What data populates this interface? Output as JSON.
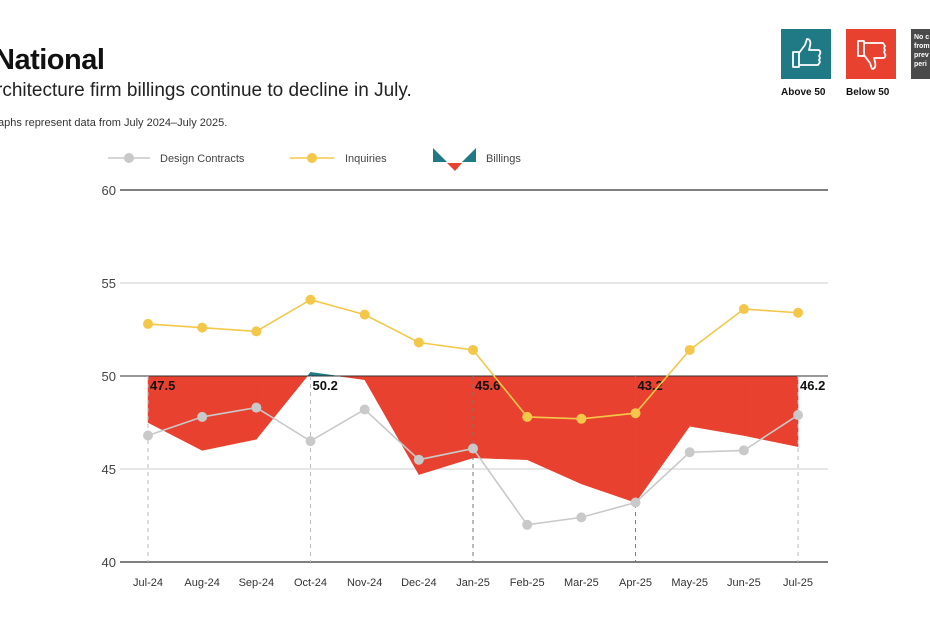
{
  "header": {
    "title": "National",
    "subtitle": "rchitecture firm billings continue to decline in July.",
    "note": "aphs represent data from July 2024–July 2025."
  },
  "badges": {
    "above_label": "Above 50",
    "below_label": "Below 50",
    "above_icon": "thumbs-up-icon",
    "below_icon": "thumbs-down-icon",
    "no_change_text": "No c\nfrom\nprev\nperi",
    "above_color": "#1f7a85",
    "below_color": "#e8412f"
  },
  "chart_data": {
    "type": "line",
    "categories": [
      "Jul-24",
      "Aug-24",
      "Sep-24",
      "Oct-24",
      "Nov-24",
      "Dec-24",
      "Jan-25",
      "Feb-25",
      "Mar-25",
      "Apr-25",
      "May-25",
      "Jun-25",
      "Jul-25"
    ],
    "ylim": [
      40,
      60
    ],
    "yticks": [
      "40",
      "45",
      "50",
      "55",
      "60"
    ],
    "baseline": 50,
    "grid": true,
    "legend_position": "top",
    "series": [
      {
        "name": "Design Contracts",
        "color": "#c9c9c9",
        "values": [
          46.8,
          47.8,
          48.3,
          46.5,
          48.2,
          45.5,
          46.1,
          42.0,
          42.4,
          43.2,
          45.9,
          46.0,
          47.9
        ]
      },
      {
        "name": "Inquiries",
        "color": "#f3c84a",
        "values": [
          52.8,
          52.6,
          52.4,
          54.1,
          53.3,
          51.8,
          51.4,
          47.8,
          47.7,
          48.0,
          51.4,
          53.6,
          53.4
        ]
      },
      {
        "name": "Billings",
        "color_above": "#1f7a85",
        "color_below": "#e8412f",
        "values": [
          47.5,
          46.0,
          46.6,
          50.2,
          49.8,
          44.7,
          45.6,
          45.5,
          44.2,
          43.2,
          47.3,
          46.8,
          46.2
        ]
      }
    ],
    "annotations": [
      {
        "index": 0,
        "label": "47.5"
      },
      {
        "index": 3,
        "label": "50.2"
      },
      {
        "index": 6,
        "label": "45.6"
      },
      {
        "index": 9,
        "label": "43.2"
      },
      {
        "index": 12,
        "label": "46.2"
      }
    ]
  }
}
